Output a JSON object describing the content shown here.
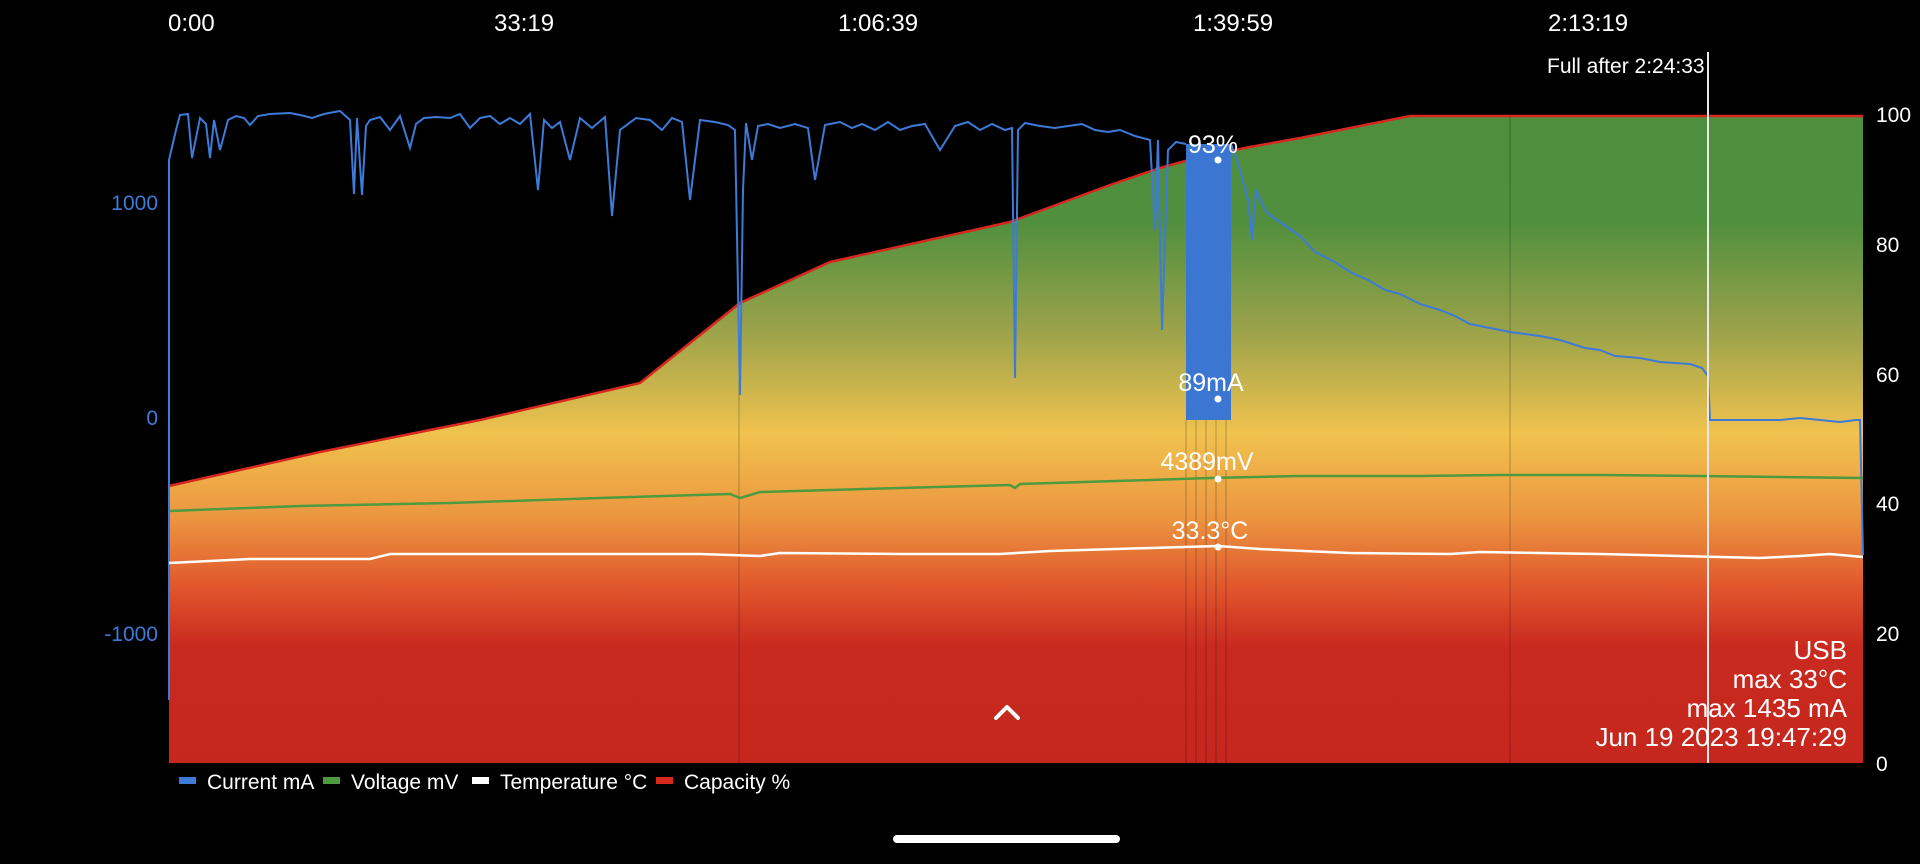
{
  "chart_data": {
    "type": "area",
    "x_unit": "elapsed time (h:mm:ss)",
    "x_tick_labels": [
      "0:00",
      "33:19",
      "1:06:39",
      "1:39:59",
      "2:13:19"
    ],
    "left_axis": {
      "ticks": [
        1000,
        0,
        -1000
      ],
      "range": [
        -1600,
        1400
      ],
      "color": "#3e7bd8"
    },
    "right_axis": {
      "ticks": [
        100,
        80,
        60,
        40,
        20,
        0
      ],
      "range": [
        0,
        100
      ]
    },
    "markers": {
      "capacity": "93%",
      "current": "89mA",
      "voltage": "4389mV",
      "temperature": "33.3°C"
    },
    "full_after": "Full after 2:24:33",
    "info": {
      "source": "USB",
      "max_temp": "max 33°C",
      "max_current": "max 1435 mA",
      "date": "Jun 19 2023 19:47:29"
    },
    "legend": [
      {
        "label": "Current mA",
        "color": "#3e7bd8"
      },
      {
        "label": "Voltage mV",
        "color": "#4e9a3e"
      },
      {
        "label": "Temperature °C",
        "color": "#ffffff"
      },
      {
        "label": "Capacity %",
        "color": "#d6281e"
      }
    ],
    "series": [
      {
        "name": "Capacity %",
        "axis": "right",
        "x": [
          "0:00",
          "33:19",
          "1:06:39",
          "1:39:59",
          "1:54:00",
          "2:24:33",
          "2:55:00"
        ],
        "values": [
          43,
          57,
          72,
          88,
          95,
          100,
          100
        ]
      },
      {
        "name": "Current mA",
        "axis": "left",
        "x": [
          "0:00",
          "0:02",
          "33:19",
          "1:06:39",
          "1:36:00",
          "1:39:59",
          "2:00:00",
          "2:13:19",
          "2:24:00",
          "2:24:33",
          "2:52:00",
          "2:55:00"
        ],
        "values": [
          1200,
          1400,
          1390,
          1360,
          1280,
          90,
          760,
          400,
          240,
          0,
          0,
          -650
        ]
      },
      {
        "name": "Voltage mV",
        "axis": "left",
        "x": [
          "0:00",
          "33:19",
          "1:06:39",
          "1:39:59",
          "2:13:19",
          "2:55:00"
        ],
        "values": [
          4160,
          4230,
          4310,
          4389,
          4400,
          4395
        ]
      },
      {
        "name": "Temperature °C",
        "axis": "left",
        "x": [
          "0:00",
          "33:19",
          "1:06:39",
          "1:39:59",
          "2:13:19",
          "2:55:00"
        ],
        "values": [
          32.2,
          32.5,
          32.7,
          33.3,
          32.9,
          32.7
        ]
      }
    ]
  }
}
